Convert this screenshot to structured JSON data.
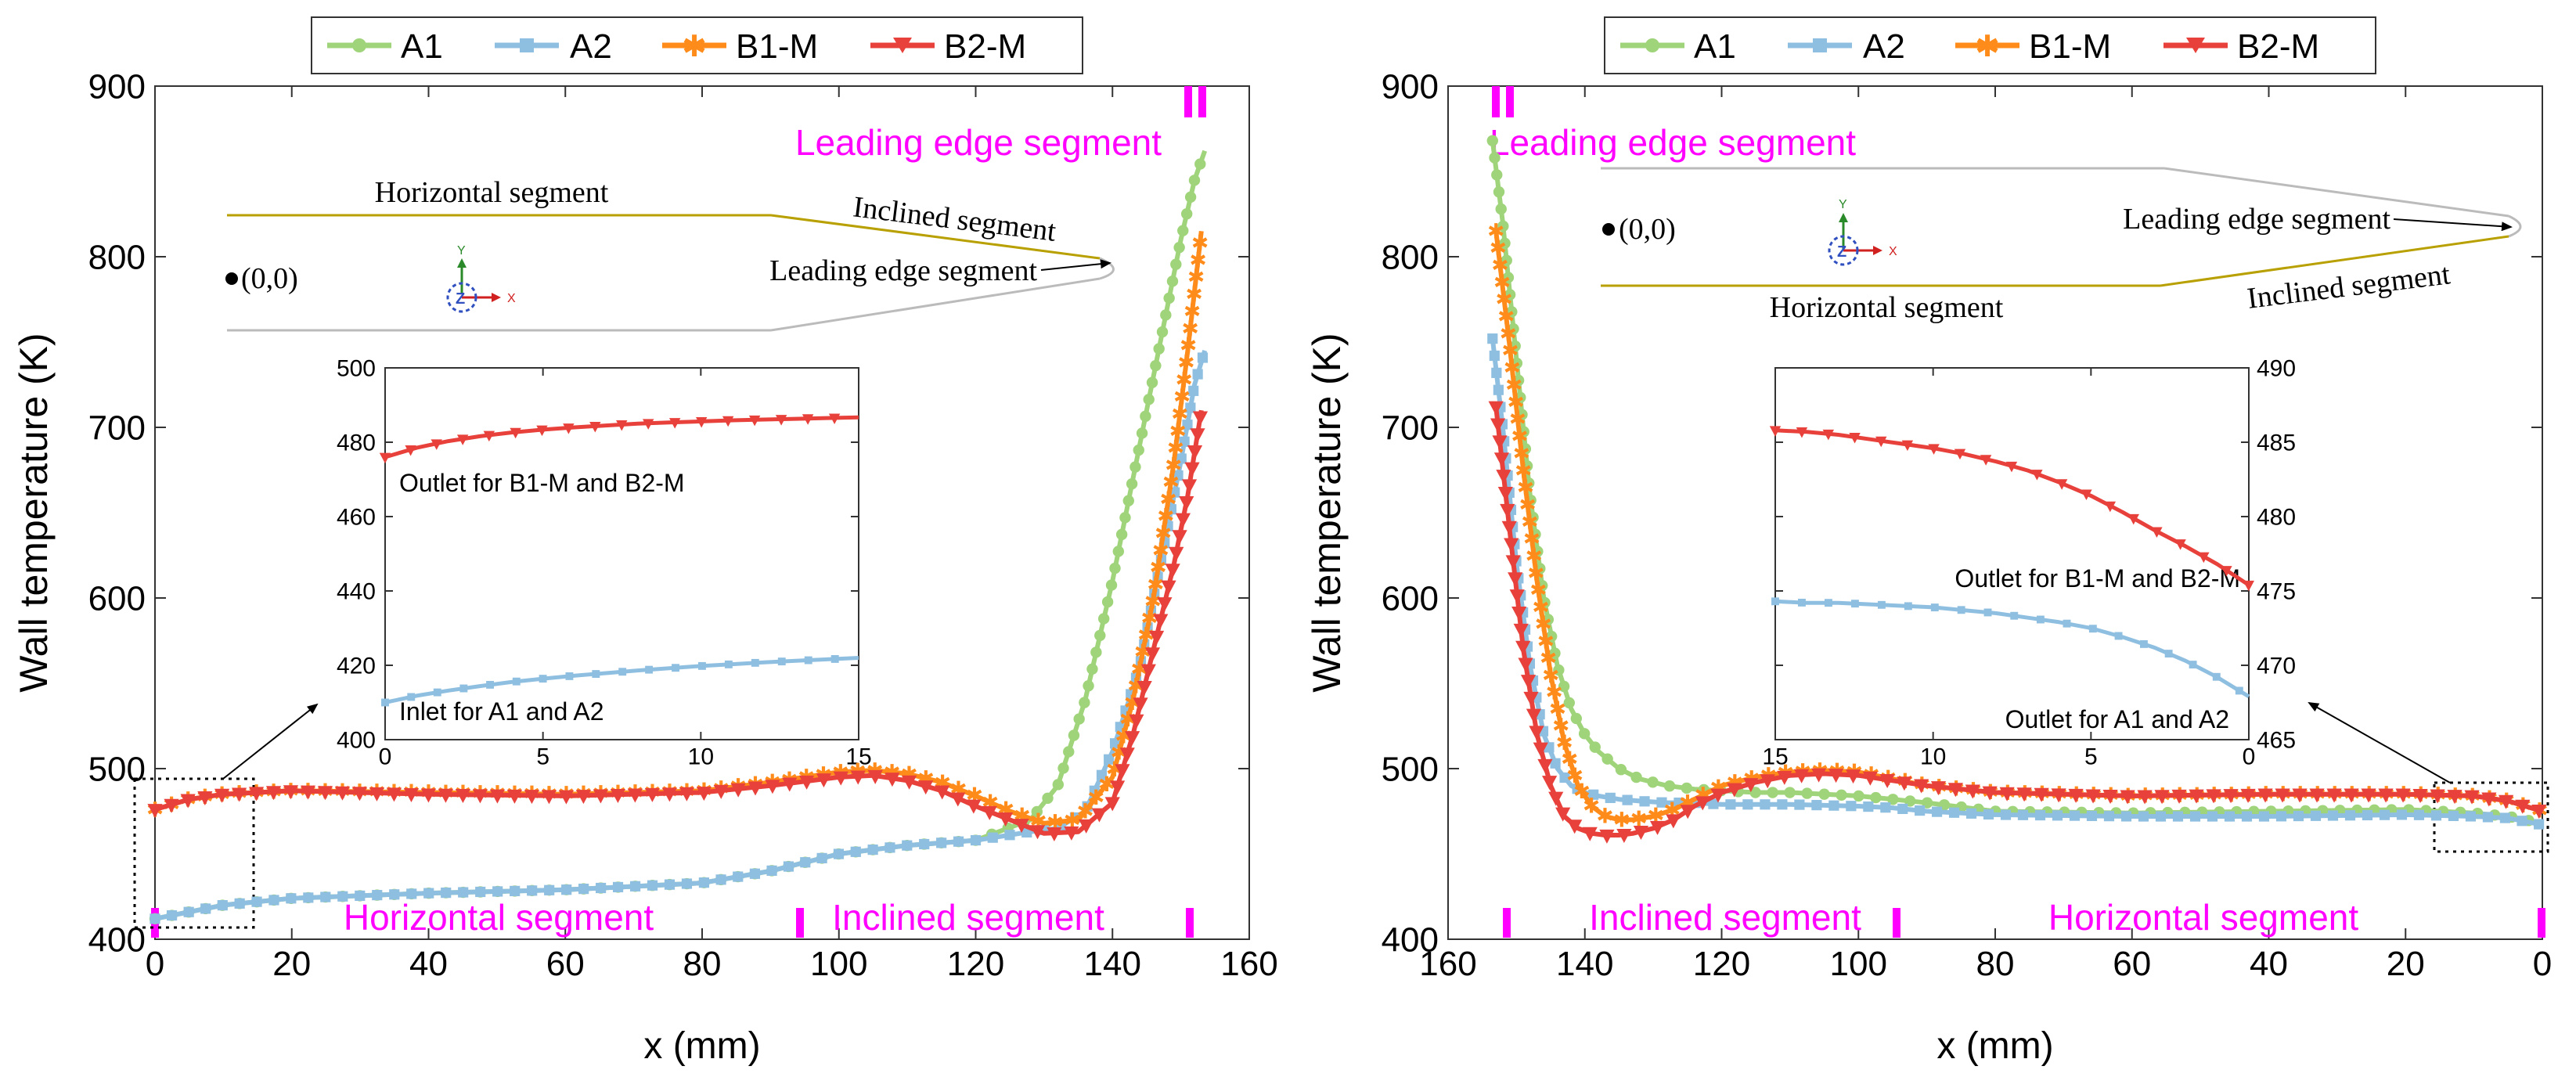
{
  "colors": {
    "A1": "#9fd47a",
    "A2": "#8fbfe0",
    "B1-M": "#ff8c1a",
    "B2-M": "#e8403a",
    "magenta": "#ff00ff",
    "gold": "#b8a000",
    "grey": "#bbbbbb"
  },
  "legend": [
    "A1",
    "A2",
    "B1-M",
    "B2-M"
  ],
  "panels": {
    "left": {
      "ylabel": "Wall temperature (K)",
      "xlabel": "x (mm)",
      "segments": {
        "leading": "Leading edge segment",
        "horizontal": "Horizontal segment",
        "inclined": "Inclined segment"
      },
      "schematic": {
        "horizontal": "Horizontal segment",
        "inclined": "Inclined segment",
        "leading": "Leading edge segment",
        "origin": "(0,0)"
      },
      "inset": {
        "top_label": "Outlet for B1-M and B2-M",
        "bottom_label": "Inlet for A1 and A2"
      }
    },
    "right": {
      "ylabel": "Wall temperature (K)",
      "xlabel": "x (mm)",
      "segments": {
        "leading": "Leading edge segment",
        "horizontal": "Horizontal segment",
        "inclined": "Inclined segment"
      },
      "schematic": {
        "horizontal": "Horizontal segment",
        "inclined": "Inclined segment",
        "leading": "Leading edge segment",
        "origin": "(0,0)"
      },
      "inset": {
        "top_label": "Outlet for B1-M and B2-M",
        "bottom_label": "Outlet for A1 and A2"
      }
    }
  },
  "chart_data": [
    {
      "type": "line",
      "name": "left",
      "xlim": [
        0,
        160
      ],
      "ylim": [
        400,
        900
      ],
      "xticks": [
        0,
        20,
        40,
        60,
        80,
        100,
        120,
        140,
        160
      ],
      "yticks": [
        400,
        500,
        600,
        700,
        800,
        900
      ],
      "series": [
        {
          "name": "A1",
          "x": [
            0,
            10,
            20,
            40,
            60,
            80,
            90,
            100,
            110,
            120,
            128,
            132,
            136,
            140,
            144,
            147,
            150,
            152,
            153.5
          ],
          "y": [
            412,
            420,
            424,
            427,
            429,
            433,
            440,
            450,
            455,
            458,
            470,
            490,
            540,
            610,
            690,
            750,
            810,
            845,
            862
          ]
        },
        {
          "name": "A2",
          "x": [
            0,
            10,
            20,
            40,
            60,
            80,
            90,
            100,
            110,
            120,
            128,
            132,
            136,
            140,
            144,
            147,
            150,
            152,
            153.5
          ],
          "y": [
            412,
            420,
            424,
            427,
            429,
            433,
            440,
            450,
            455,
            458,
            463,
            465,
            475,
            510,
            560,
            620,
            680,
            725,
            745
          ]
        },
        {
          "name": "B1-M",
          "x": [
            0,
            5,
            10,
            15,
            20,
            40,
            60,
            80,
            90,
            100,
            105,
            110,
            115,
            120,
            125,
            130,
            135,
            140,
            143,
            146,
            149,
            151,
            153
          ],
          "y": [
            476,
            482,
            485,
            486,
            487,
            486,
            485,
            487,
            492,
            498,
            499,
            497,
            492,
            484,
            475,
            468,
            470,
            495,
            540,
            600,
            680,
            745,
            815
          ]
        },
        {
          "name": "B2-M",
          "x": [
            0,
            5,
            10,
            15,
            20,
            40,
            60,
            80,
            90,
            100,
            105,
            110,
            115,
            120,
            125,
            130,
            135,
            140,
            143,
            146,
            149,
            151,
            153
          ],
          "y": [
            476,
            482,
            485,
            486,
            487,
            485,
            484,
            486,
            490,
            495,
            496,
            493,
            487,
            478,
            470,
            462,
            463,
            480,
            520,
            570,
            620,
            660,
            710
          ]
        }
      ],
      "inset": {
        "xlim": [
          0,
          15
        ],
        "ylim": [
          400,
          500
        ],
        "xticks": [
          0,
          5,
          10,
          15
        ],
        "yticks": [
          400,
          420,
          440,
          460,
          480,
          500
        ],
        "series": [
          {
            "name": "B2-M",
            "x": [
              0,
              1,
              2,
              3,
              4,
              5,
              6,
              7,
              8,
              9,
              10,
              11,
              12,
              13,
              14,
              15
            ],
            "y": [
              476,
              478.5,
              480.3,
              481.6,
              482.6,
              483.4,
              484.0,
              484.5,
              485.0,
              485.3,
              485.6,
              485.9,
              486.1,
              486.3,
              486.5,
              486.7
            ]
          },
          {
            "name": "A2",
            "x": [
              0,
              1,
              2,
              3,
              4,
              5,
              6,
              7,
              8,
              9,
              10,
              11,
              12,
              13,
              14,
              15
            ],
            "y": [
              410,
              411.8,
              413.2,
              414.4,
              415.5,
              416.4,
              417.2,
              417.9,
              418.6,
              419.2,
              419.8,
              420.3,
              420.8,
              421.2,
              421.6,
              422.0
            ]
          }
        ]
      }
    },
    {
      "type": "line",
      "name": "right",
      "xlim": [
        160,
        0
      ],
      "ylim": [
        400,
        900
      ],
      "xticks": [
        160,
        140,
        120,
        100,
        80,
        60,
        40,
        20,
        0
      ],
      "yticks": [
        400,
        500,
        600,
        700,
        800,
        900
      ],
      "series": [
        {
          "name": "A1",
          "x": [
            153.5,
            152,
            150,
            148,
            146,
            144,
            142,
            140,
            138,
            135,
            132,
            128,
            124,
            120,
            115,
            110,
            100,
            95,
            90,
            80,
            60,
            40,
            20,
            10,
            5,
            0
          ],
          "y": [
            868,
            820,
            740,
            660,
            600,
            560,
            535,
            520,
            510,
            500,
            494,
            490,
            488,
            487,
            486,
            486,
            484,
            482,
            480,
            475,
            474,
            475,
            476,
            474,
            472,
            468
          ]
        },
        {
          "name": "A2",
          "x": [
            153.5,
            152,
            150,
            148,
            146,
            144,
            142,
            140,
            138,
            135,
            132,
            128,
            124,
            120,
            115,
            110,
            100,
            95,
            90,
            80,
            60,
            40,
            20,
            10,
            5,
            0
          ],
          "y": [
            752,
            700,
            620,
            560,
            520,
            500,
            490,
            486,
            484,
            482,
            481,
            480,
            480,
            479,
            479,
            479,
            478,
            477,
            475,
            473,
            472,
            472,
            473,
            472,
            471,
            467
          ]
        },
        {
          "name": "B1-M",
          "x": [
            153,
            151,
            149,
            147,
            145,
            143,
            141,
            139,
            137,
            135,
            133,
            130,
            127,
            124,
            120,
            115,
            110,
            105,
            100,
            95,
            90,
            80,
            60,
            40,
            20,
            10,
            5,
            0
          ],
          "y": [
            815,
            748,
            675,
            610,
            555,
            515,
            490,
            478,
            472,
            470,
            470,
            472,
            476,
            482,
            490,
            495,
            498,
            499,
            498,
            494,
            490,
            486,
            484,
            485,
            485,
            484,
            481,
            475
          ]
        },
        {
          "name": "B2-M",
          "x": [
            153,
            151,
            149,
            147,
            145,
            143,
            141,
            139,
            137,
            135,
            133,
            130,
            127,
            124,
            120,
            115,
            110,
            105,
            100,
            95,
            90,
            80,
            60,
            40,
            20,
            10,
            5,
            0
          ],
          "y": [
            712,
            640,
            570,
            520,
            490,
            472,
            465,
            462,
            461,
            461,
            462,
            465,
            470,
            478,
            486,
            492,
            496,
            497,
            496,
            493,
            490,
            486,
            484,
            485,
            485,
            484,
            481,
            475
          ]
        }
      ],
      "inset": {
        "xlim": [
          15,
          0
        ],
        "ylim": [
          465,
          490
        ],
        "xticks": [
          15,
          10,
          5,
          0
        ],
        "yticks": [
          465,
          470,
          475,
          480,
          485,
          490
        ],
        "series": [
          {
            "name": "B2-M",
            "x": [
              15,
              14,
              13,
              12,
              11,
              10,
              9,
              8,
              7,
              6,
              5,
              4,
              3,
              2,
              1,
              0
            ],
            "y": [
              485.8,
              485.7,
              485.5,
              485.2,
              484.9,
              484.6,
              484.2,
              483.7,
              483.1,
              482.3,
              481.4,
              480.3,
              479.1,
              478.0,
              476.8,
              475.4
            ]
          },
          {
            "name": "A2",
            "x": [
              15,
              14,
              13,
              12,
              11,
              10,
              9,
              8,
              7,
              6,
              5,
              4,
              3,
              2,
              1,
              0
            ],
            "y": [
              474.3,
              474.2,
              474.2,
              474.1,
              474.0,
              473.9,
              473.7,
              473.5,
              473.2,
              472.9,
              472.5,
              471.9,
              471.2,
              470.3,
              469.2,
              467.9
            ]
          }
        ]
      }
    }
  ]
}
